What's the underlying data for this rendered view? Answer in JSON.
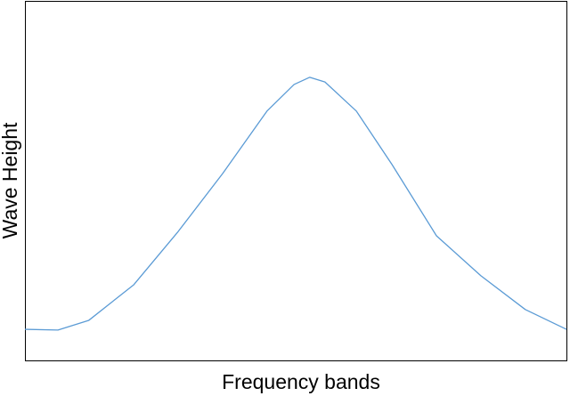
{
  "chart_data": {
    "type": "line",
    "x_label": "Frequency bands",
    "y_label": "Wave Height",
    "x": [
      0,
      6.1,
      11.8,
      20.1,
      28.3,
      36.5,
      44.7,
      49.7,
      52.6,
      55.4,
      61.2,
      67.8,
      76.0,
      84.2,
      92.4,
      100
    ],
    "series": [
      {
        "color": "#5b9bd5",
        "values": [
          8.9,
          8.7,
          11.4,
          21.3,
          36.1,
          52.2,
          69.6,
          77.0,
          79.0,
          77.7,
          69.6,
          54.7,
          34.9,
          23.8,
          14.4,
          8.9
        ]
      }
    ],
    "xlim": [
      0,
      100
    ],
    "ylim": [
      0,
      100
    ]
  }
}
